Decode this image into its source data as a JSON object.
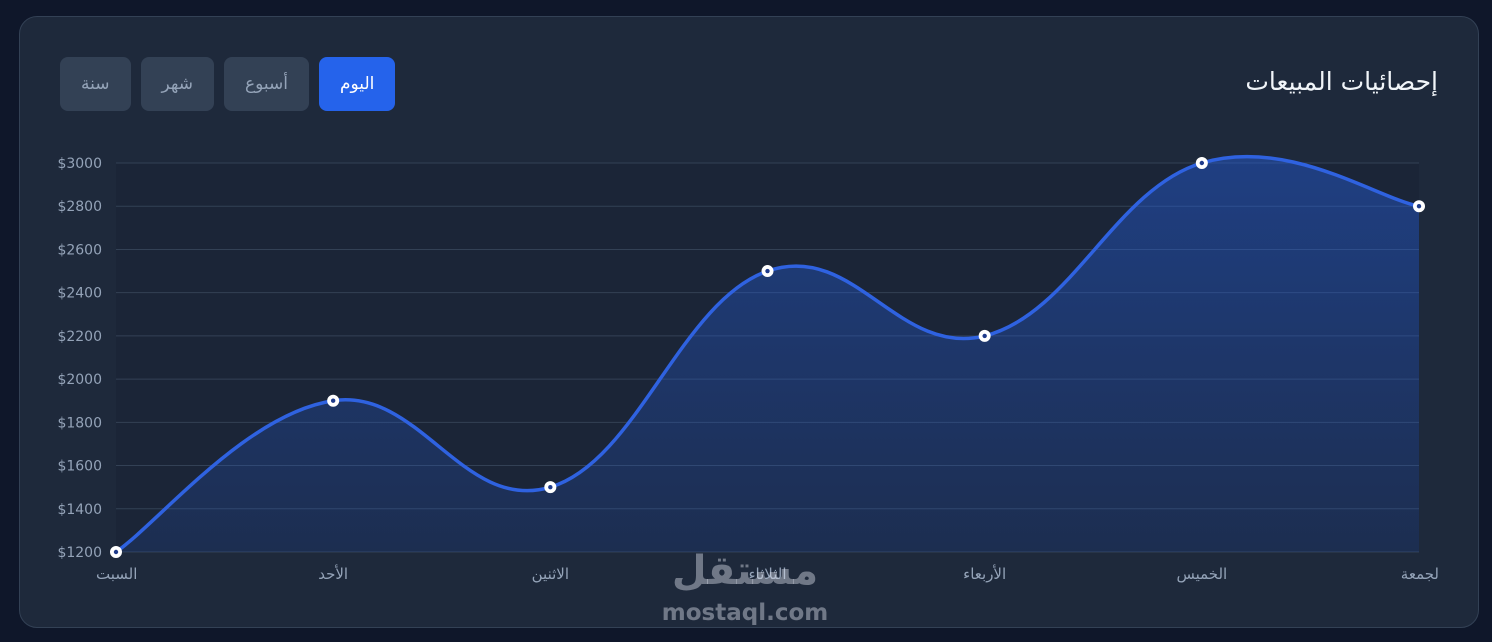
{
  "card": {
    "title": "إحصائيات المبيعات",
    "tabs": [
      {
        "label": "اليوم",
        "active": true
      },
      {
        "label": "أسبوع",
        "active": false
      },
      {
        "label": "شهر",
        "active": false
      },
      {
        "label": "سنة",
        "active": false
      }
    ]
  },
  "watermark": {
    "arabic": "مستقل",
    "latin": "mostaql.com"
  },
  "colors": {
    "background": "#0f172a",
    "card": "#1e293b",
    "accent": "#2563eb",
    "line": "#2f62e0",
    "text": "#f1f5f9",
    "muted": "#94a3b8"
  },
  "chart_data": {
    "type": "area",
    "categories": [
      "السبت",
      "الأحد",
      "الاثنين",
      "الثلاثاء",
      "الأربعاء",
      "الخميس",
      "لجمعة"
    ],
    "series": [
      {
        "values": [
          1200,
          1900,
          1500,
          2500,
          2200,
          3000,
          2800
        ]
      }
    ],
    "ylim": [
      1200,
      3000
    ],
    "yticks": [
      1200,
      1400,
      1600,
      1800,
      2000,
      2200,
      2400,
      2600,
      2800,
      3000
    ],
    "ytick_prefix": "$",
    "grid": true,
    "smooth": true
  }
}
